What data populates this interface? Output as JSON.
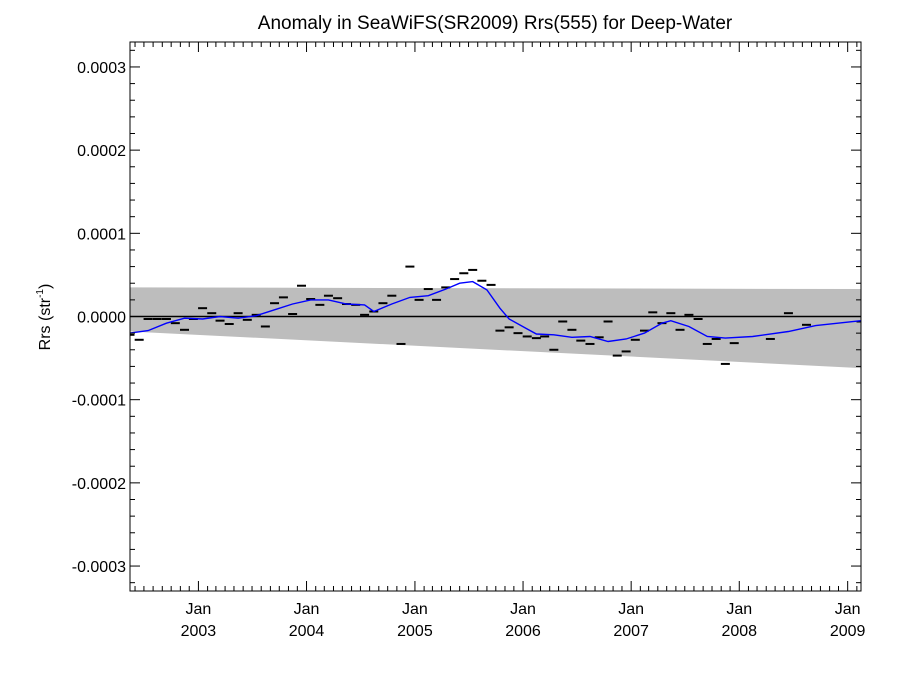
{
  "chart_data": {
    "type": "line",
    "title": "Anomaly in SeaWiFS(SR2009) Rrs(555) for Deep-Water",
    "ylabel_main": "Rrs (str",
    "ylabel_sup": "-1",
    "ylabel_close": ")",
    "xlabel": "",
    "ylim": [
      -0.00033,
      0.00033
    ],
    "xlim": [
      "2002-05-15",
      "2009-02-15"
    ],
    "yticks": [
      {
        "value": 0.0003,
        "label": "0.0003"
      },
      {
        "value": 0.0002,
        "label": "0.0002"
      },
      {
        "value": 0.0001,
        "label": "0.0001"
      },
      {
        "value": 0.0,
        "label": "0.0000"
      },
      {
        "value": -0.0001,
        "label": "-0.0001"
      },
      {
        "value": -0.0002,
        "label": "-0.0002"
      },
      {
        "value": -0.0003,
        "label": "-0.0003"
      }
    ],
    "xticks": [
      {
        "date": "2003-01-01",
        "month": "Jan",
        "year": "2003"
      },
      {
        "date": "2004-01-01",
        "month": "Jan",
        "year": "2004"
      },
      {
        "date": "2005-01-01",
        "month": "Jan",
        "year": "2005"
      },
      {
        "date": "2006-01-01",
        "month": "Jan",
        "year": "2006"
      },
      {
        "date": "2007-01-01",
        "month": "Jan",
        "year": "2007"
      },
      {
        "date": "2008-01-01",
        "month": "Jan",
        "year": "2008"
      },
      {
        "date": "2009-01-01",
        "month": "Jan",
        "year": "2009"
      }
    ],
    "reference_line": 0.0,
    "band": {
      "color": "#bdbdbd",
      "start": {
        "date": "2002-05-15",
        "upper": 3.5e-05,
        "lower": -1.8e-05
      },
      "end": {
        "date": "2009-02-15",
        "upper": 3.3e-05,
        "lower": -6.2e-05
      }
    },
    "monthly_anomaly": {
      "color": "#000000",
      "points": [
        {
          "date": "2002-05-15",
          "value": -2.2e-05
        },
        {
          "date": "2002-06-15",
          "value": -2.8e-05
        },
        {
          "date": "2002-07-15",
          "value": -3e-06
        },
        {
          "date": "2002-08-15",
          "value": -3e-06
        },
        {
          "date": "2002-09-15",
          "value": -3e-06
        },
        {
          "date": "2002-10-15",
          "value": -8e-06
        },
        {
          "date": "2002-11-15",
          "value": -1.6e-05
        },
        {
          "date": "2002-12-15",
          "value": -3e-06
        },
        {
          "date": "2003-01-15",
          "value": 1e-05
        },
        {
          "date": "2003-02-15",
          "value": 4e-06
        },
        {
          "date": "2003-03-15",
          "value": -5e-06
        },
        {
          "date": "2003-04-15",
          "value": -9e-06
        },
        {
          "date": "2003-05-15",
          "value": 4e-06
        },
        {
          "date": "2003-06-15",
          "value": -4e-06
        },
        {
          "date": "2003-07-15",
          "value": 2e-06
        },
        {
          "date": "2003-08-15",
          "value": -1.2e-05
        },
        {
          "date": "2003-09-15",
          "value": 1.6e-05
        },
        {
          "date": "2003-10-15",
          "value": 2.3e-05
        },
        {
          "date": "2003-11-15",
          "value": 3e-06
        },
        {
          "date": "2003-12-15",
          "value": 3.7e-05
        },
        {
          "date": "2004-01-15",
          "value": 2.1e-05
        },
        {
          "date": "2004-02-15",
          "value": 1.4e-05
        },
        {
          "date": "2004-03-15",
          "value": 2.5e-05
        },
        {
          "date": "2004-04-15",
          "value": 2.2e-05
        },
        {
          "date": "2004-05-15",
          "value": 1.5e-05
        },
        {
          "date": "2004-06-15",
          "value": 1.4e-05
        },
        {
          "date": "2004-07-15",
          "value": 2e-06
        },
        {
          "date": "2004-08-15",
          "value": 6e-06
        },
        {
          "date": "2004-09-15",
          "value": 1.6e-05
        },
        {
          "date": "2004-10-15",
          "value": 2.5e-05
        },
        {
          "date": "2004-11-15",
          "value": -3.3e-05
        },
        {
          "date": "2004-12-15",
          "value": 6e-05
        },
        {
          "date": "2005-01-15",
          "value": 2e-05
        },
        {
          "date": "2005-02-15",
          "value": 3.3e-05
        },
        {
          "date": "2005-03-15",
          "value": 2e-05
        },
        {
          "date": "2005-04-15",
          "value": 3.5e-05
        },
        {
          "date": "2005-05-15",
          "value": 4.5e-05
        },
        {
          "date": "2005-06-15",
          "value": 5.2e-05
        },
        {
          "date": "2005-07-15",
          "value": 5.6e-05
        },
        {
          "date": "2005-08-15",
          "value": 4.3e-05
        },
        {
          "date": "2005-09-15",
          "value": 3.8e-05
        },
        {
          "date": "2005-10-15",
          "value": -1.7e-05
        },
        {
          "date": "2005-11-15",
          "value": -1.3e-05
        },
        {
          "date": "2005-12-15",
          "value": -2e-05
        },
        {
          "date": "2006-01-15",
          "value": -2.4e-05
        },
        {
          "date": "2006-02-15",
          "value": -2.6e-05
        },
        {
          "date": "2006-03-15",
          "value": -2.4e-05
        },
        {
          "date": "2006-04-15",
          "value": -4e-05
        },
        {
          "date": "2006-05-15",
          "value": -6e-06
        },
        {
          "date": "2006-06-15",
          "value": -1.6e-05
        },
        {
          "date": "2006-07-15",
          "value": -2.9e-05
        },
        {
          "date": "2006-08-15",
          "value": -3.3e-05
        },
        {
          "date": "2006-09-15",
          "value": -2.5e-05
        },
        {
          "date": "2006-10-15",
          "value": -6e-06
        },
        {
          "date": "2006-11-15",
          "value": -4.7e-05
        },
        {
          "date": "2006-12-15",
          "value": -4.2e-05
        },
        {
          "date": "2007-01-15",
          "value": -2.8e-05
        },
        {
          "date": "2007-02-15",
          "value": -1.7e-05
        },
        {
          "date": "2007-03-15",
          "value": 5e-06
        },
        {
          "date": "2007-04-15",
          "value": -8e-06
        },
        {
          "date": "2007-05-15",
          "value": 4e-06
        },
        {
          "date": "2007-06-15",
          "value": -1.6e-05
        },
        {
          "date": "2007-07-15",
          "value": 2e-06
        },
        {
          "date": "2007-08-15",
          "value": -3e-06
        },
        {
          "date": "2007-09-15",
          "value": -3.3e-05
        },
        {
          "date": "2007-10-15",
          "value": -2.7e-05
        },
        {
          "date": "2007-11-15",
          "value": -5.7e-05
        },
        {
          "date": "2007-12-15",
          "value": -3.2e-05
        },
        {
          "date": "2008-04-15",
          "value": -2.7e-05
        },
        {
          "date": "2008-06-15",
          "value": 4e-06
        },
        {
          "date": "2008-08-15",
          "value": -1e-05
        },
        {
          "date": "2009-02-15",
          "value": -6e-06
        }
      ]
    },
    "smoothed": {
      "color": "#0000ff",
      "points": [
        {
          "date": "2002-05-15",
          "value": -2e-05
        },
        {
          "date": "2002-07-15",
          "value": -1.7e-05
        },
        {
          "date": "2002-09-15",
          "value": -8e-06
        },
        {
          "date": "2002-11-15",
          "value": -2e-06
        },
        {
          "date": "2003-01-15",
          "value": -3e-06
        },
        {
          "date": "2003-03-15",
          "value": 0.0
        },
        {
          "date": "2003-05-15",
          "value": -2e-06
        },
        {
          "date": "2003-07-15",
          "value": 1e-06
        },
        {
          "date": "2003-09-15",
          "value": 8e-06
        },
        {
          "date": "2003-11-15",
          "value": 1.5e-05
        },
        {
          "date": "2004-01-15",
          "value": 2e-05
        },
        {
          "date": "2004-03-15",
          "value": 2e-05
        },
        {
          "date": "2004-05-15",
          "value": 1.5e-05
        },
        {
          "date": "2004-07-15",
          "value": 1.4e-05
        },
        {
          "date": "2004-08-15",
          "value": 6e-06
        },
        {
          "date": "2004-10-15",
          "value": 1.5e-05
        },
        {
          "date": "2004-12-15",
          "value": 2.3e-05
        },
        {
          "date": "2005-02-15",
          "value": 2.5e-05
        },
        {
          "date": "2005-04-15",
          "value": 3.3e-05
        },
        {
          "date": "2005-06-01",
          "value": 4e-05
        },
        {
          "date": "2005-07-15",
          "value": 4.2e-05
        },
        {
          "date": "2005-09-01",
          "value": 3.2e-05
        },
        {
          "date": "2005-10-15",
          "value": 1e-05
        },
        {
          "date": "2005-11-15",
          "value": -3e-06
        },
        {
          "date": "2006-01-15",
          "value": -1.5e-05
        },
        {
          "date": "2006-02-15",
          "value": -2.1e-05
        },
        {
          "date": "2006-04-15",
          "value": -2.2e-05
        },
        {
          "date": "2006-06-15",
          "value": -2.5e-05
        },
        {
          "date": "2006-08-15",
          "value": -2.4e-05
        },
        {
          "date": "2006-10-15",
          "value": -3e-05
        },
        {
          "date": "2006-12-15",
          "value": -2.7e-05
        },
        {
          "date": "2007-02-15",
          "value": -2e-05
        },
        {
          "date": "2007-04-15",
          "value": -8e-06
        },
        {
          "date": "2007-05-15",
          "value": -5e-06
        },
        {
          "date": "2007-07-15",
          "value": -1.2e-05
        },
        {
          "date": "2007-09-15",
          "value": -2.4e-05
        },
        {
          "date": "2007-11-15",
          "value": -2.6e-05
        },
        {
          "date": "2008-02-15",
          "value": -2.4e-05
        },
        {
          "date": "2008-06-15",
          "value": -1.8e-05
        },
        {
          "date": "2008-09-15",
          "value": -1.1e-05
        },
        {
          "date": "2009-02-15",
          "value": -5e-06
        }
      ]
    }
  }
}
